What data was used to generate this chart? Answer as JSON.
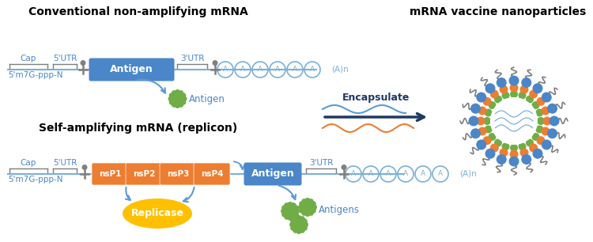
{
  "title_left": "Conventional non-amplifying mRNA",
  "title_right": "mRNA vaccine nanoparticles",
  "title_bottom": "Self-amplifying mRNA (replicon)",
  "bg_color": "#ffffff",
  "blue_dark": "#1f3864",
  "blue_mid": "#4a86c8",
  "blue_light": "#5b9bd5",
  "blue_label": "#4a86c8",
  "blue_line": "#7ab0d8",
  "orange": "#ed7d31",
  "orange_light": "#f4b183",
  "green": "#70ad47",
  "yellow": "#ffc000",
  "gray": "#7f7f7f",
  "gray_light": "#a6a6a6"
}
